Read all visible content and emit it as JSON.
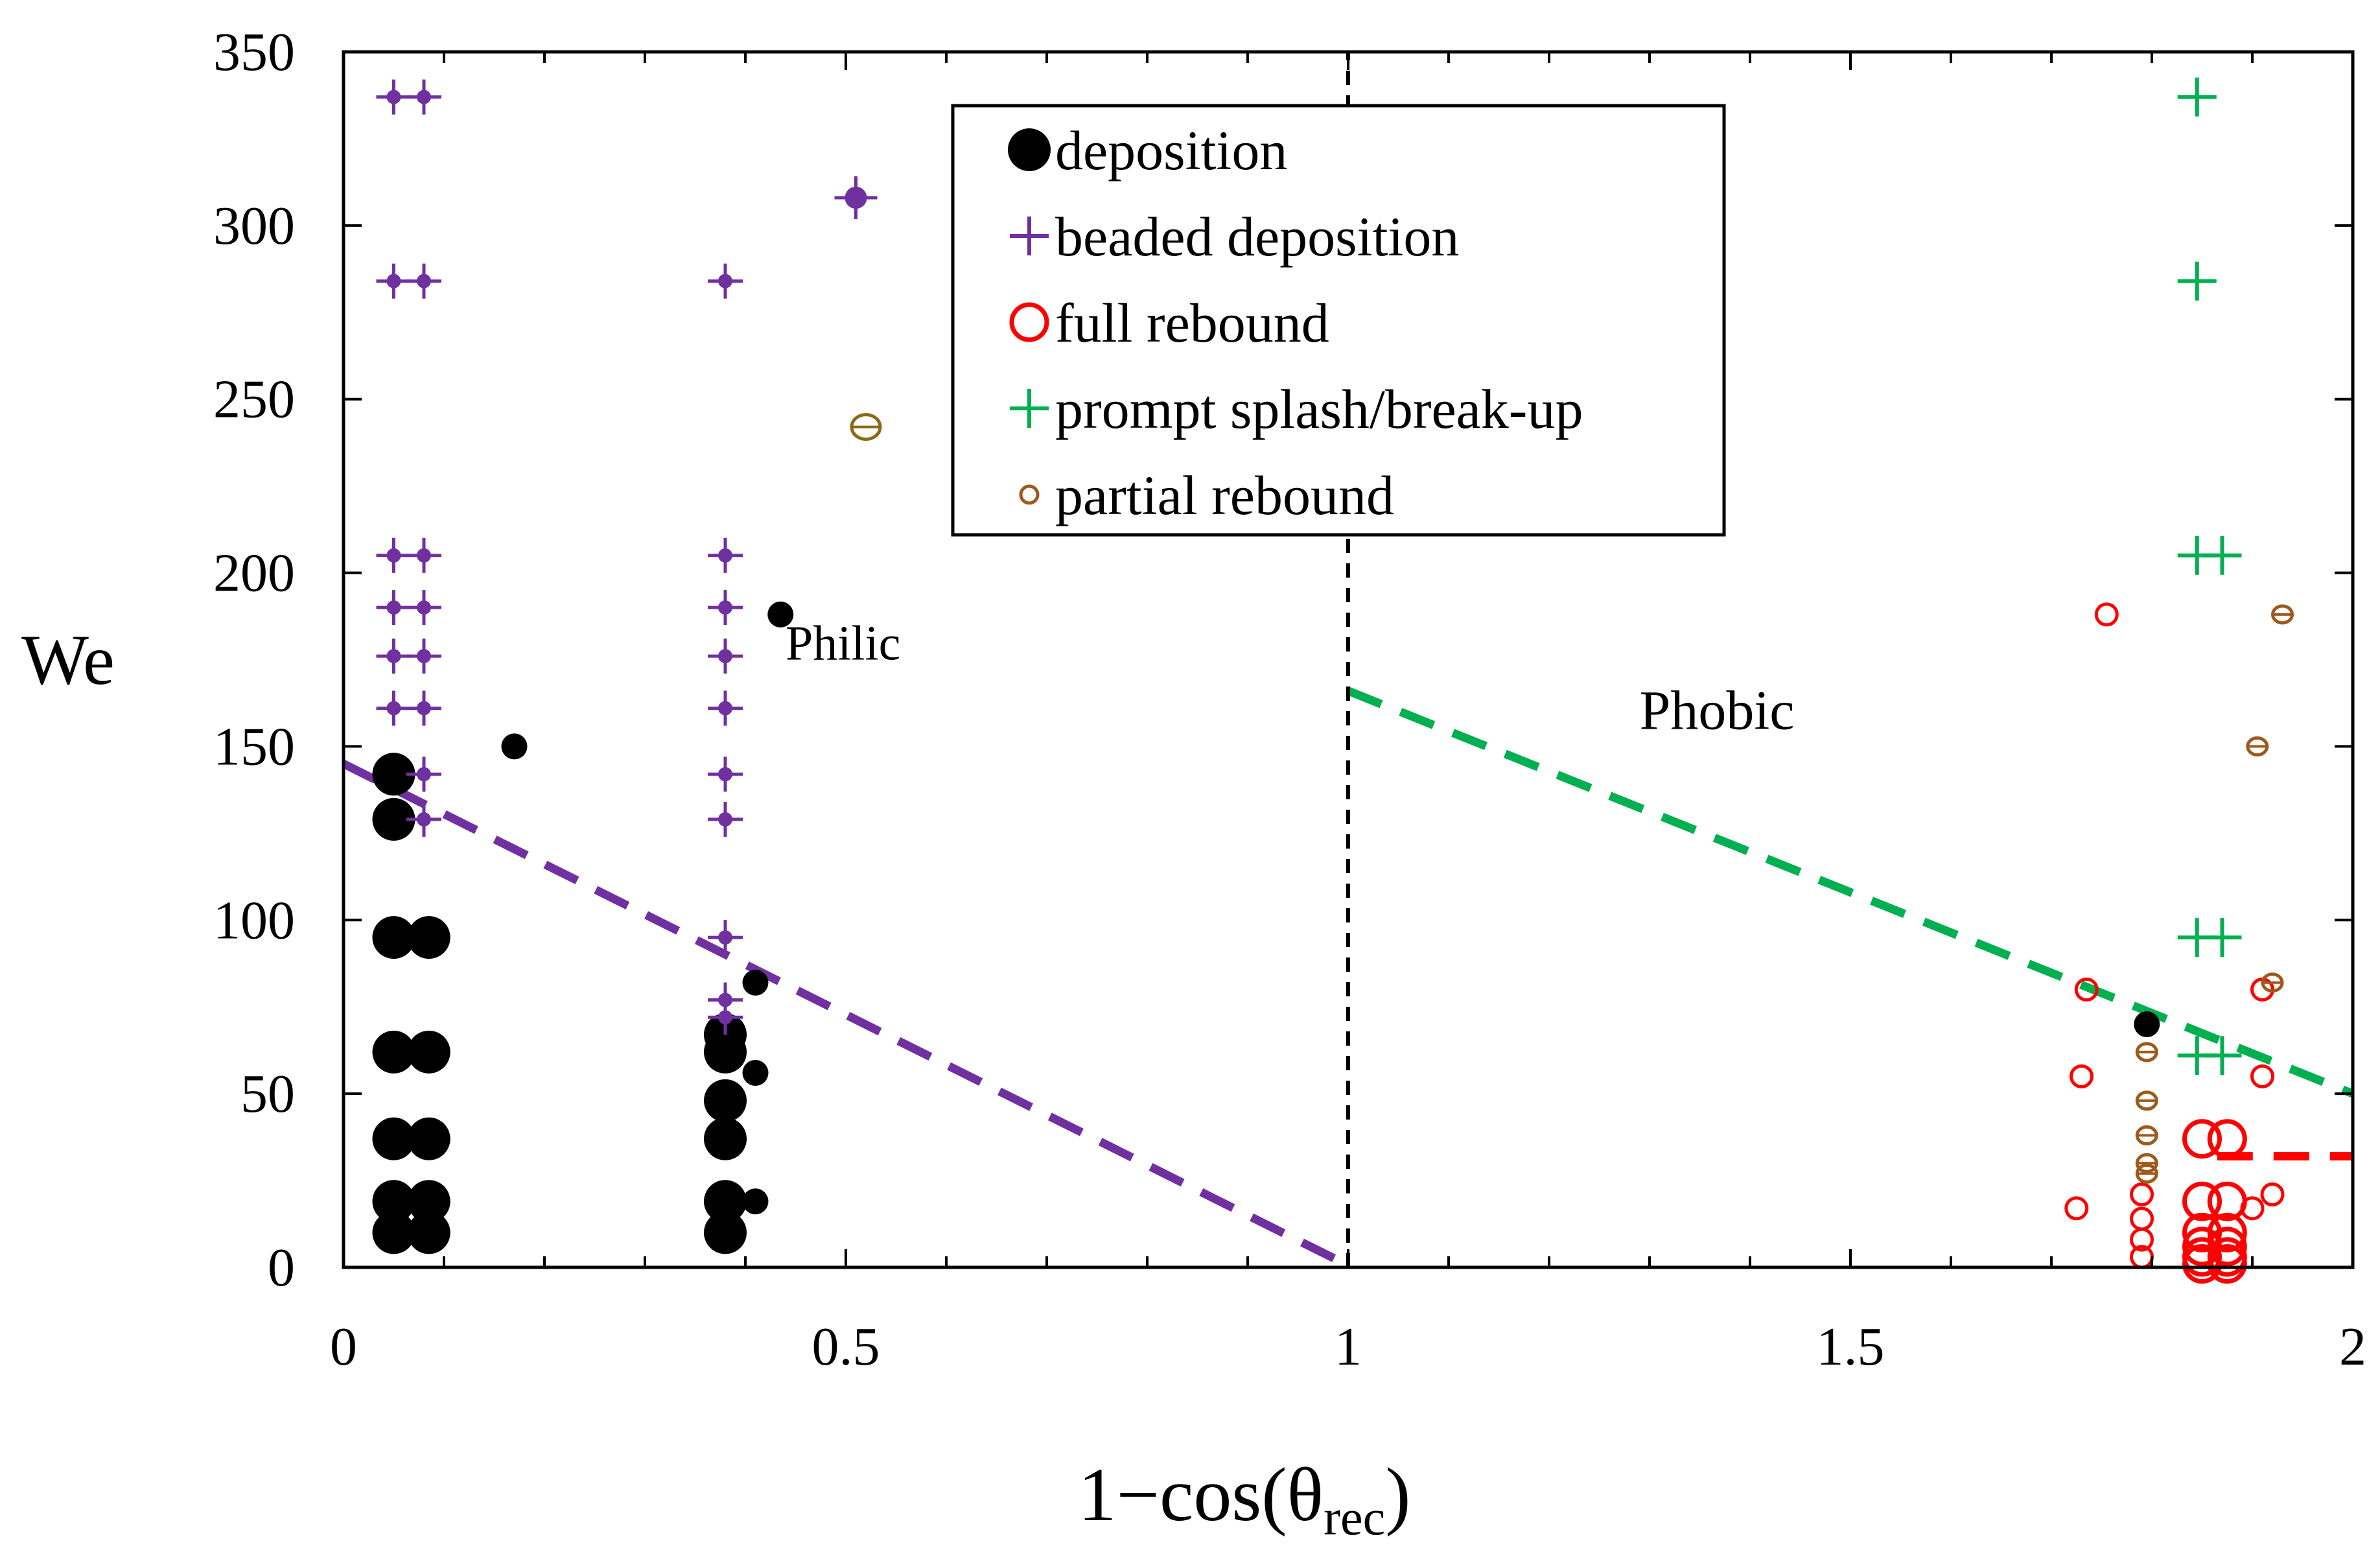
{
  "chart_data": {
    "type": "scatter",
    "xlabel": {
      "main": "1−cos(θ",
      "sub": "rec",
      "close": ")"
    },
    "ylabel": "We",
    "xlim": [
      0,
      2
    ],
    "ylim": [
      0,
      350
    ],
    "xticks": [
      0,
      0.5,
      1,
      1.5,
      2
    ],
    "xtick_labels": [
      "0",
      "0.5",
      "1",
      "1.5",
      "2"
    ],
    "yticks": [
      0,
      50,
      100,
      150,
      200,
      250,
      300,
      350
    ],
    "ytick_labels": [
      "0",
      "50",
      "100",
      "150",
      "200",
      "250",
      "300",
      "350"
    ],
    "x_minor_step": 0.1,
    "grid": false,
    "legend_position": "top-center",
    "annotations": [
      {
        "text": "Philic",
        "x": 0.44,
        "y": 175
      },
      {
        "text": "Phobic",
        "x": 1.29,
        "y": 155
      }
    ],
    "colors": {
      "deposition": "#000000",
      "beaded": "#7030a0",
      "full_rebound": "#ff0000",
      "splash": "#00b050",
      "partial": "#9c5a1c",
      "olive": "#8b6a14"
    },
    "series": [
      {
        "name": "deposition",
        "marker": "filled-circle",
        "color": "#000000",
        "points": [
          {
            "x": 0.05,
            "y": 142,
            "s": "L"
          },
          {
            "x": 0.05,
            "y": 129,
            "s": "L"
          },
          {
            "x": 0.05,
            "y": 95,
            "s": "L"
          },
          {
            "x": 0.05,
            "y": 62,
            "s": "L"
          },
          {
            "x": 0.05,
            "y": 37,
            "s": "L"
          },
          {
            "x": 0.05,
            "y": 19,
            "s": "L"
          },
          {
            "x": 0.05,
            "y": 10,
            "s": "L"
          },
          {
            "x": 0.085,
            "y": 95,
            "s": "L"
          },
          {
            "x": 0.085,
            "y": 62,
            "s": "L"
          },
          {
            "x": 0.085,
            "y": 37,
            "s": "L"
          },
          {
            "x": 0.085,
            "y": 19,
            "s": "L"
          },
          {
            "x": 0.085,
            "y": 10,
            "s": "L"
          },
          {
            "x": 0.17,
            "y": 150,
            "s": "S"
          },
          {
            "x": 0.38,
            "y": 67,
            "s": "L"
          },
          {
            "x": 0.38,
            "y": 62,
            "s": "L"
          },
          {
            "x": 0.38,
            "y": 48,
            "s": "L"
          },
          {
            "x": 0.38,
            "y": 37,
            "s": "L"
          },
          {
            "x": 0.38,
            "y": 19,
            "s": "L"
          },
          {
            "x": 0.38,
            "y": 10,
            "s": "L"
          },
          {
            "x": 0.41,
            "y": 82,
            "s": "S"
          },
          {
            "x": 0.41,
            "y": 56,
            "s": "S"
          },
          {
            "x": 0.41,
            "y": 19,
            "s": "S"
          },
          {
            "x": 0.435,
            "y": 188,
            "s": "S"
          },
          {
            "x": 1.795,
            "y": 70,
            "s": "S"
          }
        ]
      },
      {
        "name": "beaded deposition",
        "marker": "plus-dot",
        "color": "#7030a0",
        "points": [
          {
            "x": 0.05,
            "y": 337
          },
          {
            "x": 0.08,
            "y": 337
          },
          {
            "x": 0.05,
            "y": 284
          },
          {
            "x": 0.08,
            "y": 284
          },
          {
            "x": 0.05,
            "y": 205
          },
          {
            "x": 0.08,
            "y": 205
          },
          {
            "x": 0.05,
            "y": 190
          },
          {
            "x": 0.08,
            "y": 190
          },
          {
            "x": 0.05,
            "y": 176
          },
          {
            "x": 0.08,
            "y": 176
          },
          {
            "x": 0.05,
            "y": 161
          },
          {
            "x": 0.08,
            "y": 161
          },
          {
            "x": 0.08,
            "y": 142
          },
          {
            "x": 0.08,
            "y": 129
          },
          {
            "x": 0.38,
            "y": 284
          },
          {
            "x": 0.38,
            "y": 205
          },
          {
            "x": 0.38,
            "y": 190
          },
          {
            "x": 0.38,
            "y": 176
          },
          {
            "x": 0.38,
            "y": 161
          },
          {
            "x": 0.38,
            "y": 142
          },
          {
            "x": 0.38,
            "y": 129
          },
          {
            "x": 0.38,
            "y": 95
          },
          {
            "x": 0.38,
            "y": 77
          },
          {
            "x": 0.38,
            "y": 72
          },
          {
            "x": 0.51,
            "y": 308,
            "s": "L"
          }
        ]
      },
      {
        "name": "full rebound",
        "marker": "open-circle",
        "color": "#ff0000",
        "points": [
          {
            "x": 1.755,
            "y": 188,
            "s": "S"
          },
          {
            "x": 1.735,
            "y": 80,
            "s": "S"
          },
          {
            "x": 1.73,
            "y": 55,
            "s": "S"
          },
          {
            "x": 1.725,
            "y": 17,
            "s": "S"
          },
          {
            "x": 1.79,
            "y": 21,
            "s": "S"
          },
          {
            "x": 1.79,
            "y": 14,
            "s": "S"
          },
          {
            "x": 1.79,
            "y": 8,
            "s": "S"
          },
          {
            "x": 1.79,
            "y": 3,
            "s": "S"
          },
          {
            "x": 1.85,
            "y": 37,
            "s": "L"
          },
          {
            "x": 1.875,
            "y": 37,
            "s": "L"
          },
          {
            "x": 1.85,
            "y": 19,
            "s": "L"
          },
          {
            "x": 1.875,
            "y": 19,
            "s": "L"
          },
          {
            "x": 1.85,
            "y": 10,
            "s": "L"
          },
          {
            "x": 1.875,
            "y": 10,
            "s": "L"
          },
          {
            "x": 1.85,
            "y": 6,
            "s": "L"
          },
          {
            "x": 1.875,
            "y": 6,
            "s": "L"
          },
          {
            "x": 1.85,
            "y": 3,
            "s": "L"
          },
          {
            "x": 1.875,
            "y": 3,
            "s": "L"
          },
          {
            "x": 1.85,
            "y": 1,
            "s": "L"
          },
          {
            "x": 1.875,
            "y": 1,
            "s": "L"
          },
          {
            "x": 1.91,
            "y": 80,
            "s": "S"
          },
          {
            "x": 1.91,
            "y": 55,
            "s": "S"
          },
          {
            "x": 1.92,
            "y": 21,
            "s": "S"
          },
          {
            "x": 1.9,
            "y": 17,
            "s": "S"
          }
        ]
      },
      {
        "name": "prompt splash/break-up",
        "marker": "plus",
        "color": "#00b050",
        "points": [
          {
            "x": 1.845,
            "y": 337
          },
          {
            "x": 1.845,
            "y": 284
          },
          {
            "x": 1.845,
            "y": 205
          },
          {
            "x": 1.87,
            "y": 205
          },
          {
            "x": 1.845,
            "y": 95
          },
          {
            "x": 1.87,
            "y": 95
          },
          {
            "x": 1.845,
            "y": 61
          },
          {
            "x": 1.87,
            "y": 61
          }
        ]
      },
      {
        "name": "partial rebound",
        "marker": "theta",
        "color": "#9c5a1c",
        "points": [
          {
            "x": 1.795,
            "y": 62
          },
          {
            "x": 1.795,
            "y": 48
          },
          {
            "x": 1.795,
            "y": 38
          },
          {
            "x": 1.795,
            "y": 30
          },
          {
            "x": 1.795,
            "y": 27
          },
          {
            "x": 1.905,
            "y": 150
          },
          {
            "x": 1.93,
            "y": 188
          },
          {
            "x": 1.92,
            "y": 82
          },
          {
            "x": 0.52,
            "y": 242,
            "s": "L",
            "color": "#8b6a14"
          }
        ]
      }
    ],
    "lines": [
      {
        "color": "#7030a0",
        "dash": "dashed",
        "x": [
          0,
          0.99
        ],
        "y": [
          145,
          2
        ]
      },
      {
        "color": "#00b050",
        "dash": "dashed",
        "x": [
          1.0,
          2.0
        ],
        "y": [
          166,
          50
        ]
      },
      {
        "color": "#000000",
        "dash": "short-dashed",
        "x": [
          1.0,
          1.0
        ],
        "y": [
          0,
          350
        ]
      },
      {
        "color": "#ff0000",
        "dash": "dashed",
        "x": [
          1.865,
          2.0
        ],
        "y": [
          32,
          32
        ]
      }
    ],
    "legend": [
      {
        "label": "deposition",
        "marker": "filled-circle",
        "color": "#000000"
      },
      {
        "label": "beaded deposition",
        "marker": "plus",
        "color": "#7030a0"
      },
      {
        "label": "full rebound",
        "marker": "open-circle",
        "color": "#ff0000"
      },
      {
        "label": "prompt splash/break-up",
        "marker": "plus",
        "color": "#00b050"
      },
      {
        "label": "partial rebound",
        "marker": "small-open-circle",
        "color": "#9c5a1c"
      }
    ]
  }
}
